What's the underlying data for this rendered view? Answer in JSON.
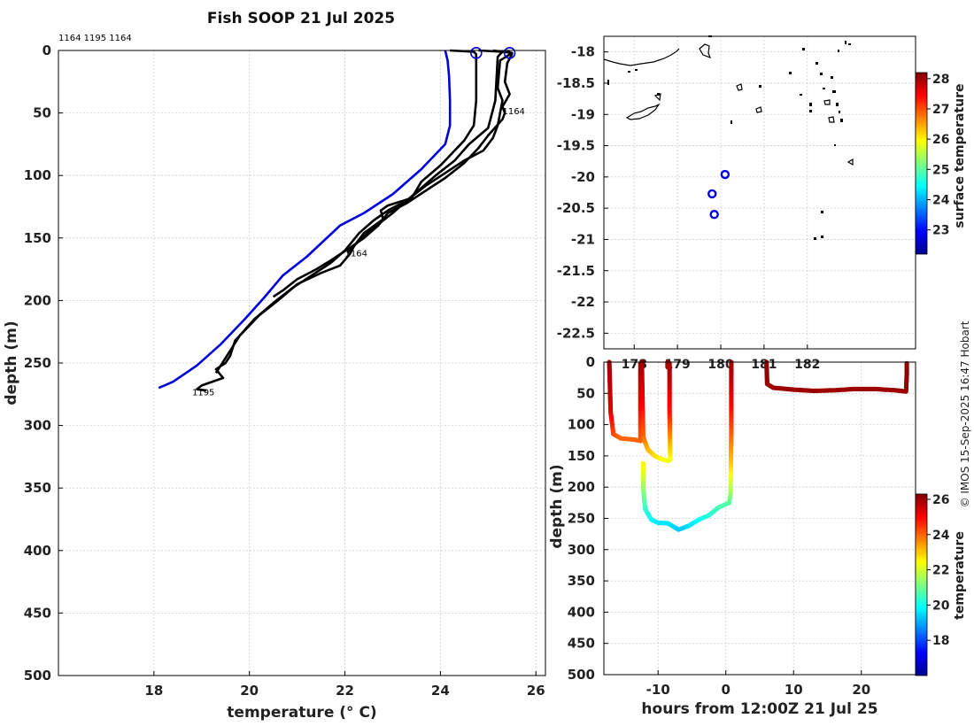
{
  "title": "Fish SOOP 21 Jul 2025",
  "header_ids": "1164 1195 1164",
  "credit": "© IMOS 15-Sep-2025 16:47 Hobart",
  "colors": {
    "blue_trace": "#0000dd",
    "black_trace": "#000000",
    "grid": "#cccccc"
  },
  "chart_data": [
    {
      "type": "line",
      "name": "temperature-depth-profiles",
      "xlabel": "temperature (° C)",
      "ylabel": "depth (m)",
      "xlim": [
        16,
        26.2
      ],
      "ylim": [
        500,
        0
      ],
      "xticks": [
        18,
        20,
        22,
        24,
        26
      ],
      "yticks": [
        0,
        50,
        100,
        150,
        200,
        250,
        300,
        350,
        400,
        450,
        500
      ],
      "annotations": [
        {
          "text": "1164",
          "x": 25.3,
          "y": 48
        },
        {
          "text": "1164",
          "x": 22.0,
          "y": 162
        },
        {
          "text": "1195",
          "x": 18.8,
          "y": 273
        }
      ],
      "series": [
        {
          "name": "blue-profile",
          "color": "#0000dd",
          "points": [
            [
              24.1,
              0
            ],
            [
              24.15,
              8
            ],
            [
              24.18,
              20
            ],
            [
              24.2,
              40
            ],
            [
              24.2,
              60
            ],
            [
              24.1,
              75
            ],
            [
              23.6,
              95
            ],
            [
              23.0,
              115
            ],
            [
              22.4,
              130
            ],
            [
              21.9,
              140
            ],
            [
              21.2,
              165
            ],
            [
              20.7,
              180
            ],
            [
              20.3,
              198
            ],
            [
              19.9,
              215
            ],
            [
              19.4,
              235
            ],
            [
              18.9,
              252
            ],
            [
              18.4,
              265
            ],
            [
              18.1,
              270
            ]
          ]
        },
        {
          "name": "profile-1195",
          "color": "#000000",
          "points": [
            [
              24.2,
              0
            ],
            [
              24.7,
              1
            ],
            [
              24.75,
              3
            ],
            [
              24.75,
              40
            ],
            [
              24.7,
              60
            ],
            [
              24.5,
              72
            ],
            [
              24.0,
              92
            ],
            [
              23.6,
              105
            ],
            [
              23.4,
              118
            ],
            [
              22.9,
              124
            ],
            [
              22.75,
              128
            ],
            [
              22.8,
              135
            ],
            [
              22.4,
              146
            ],
            [
              22.2,
              156
            ],
            [
              22.1,
              163
            ],
            [
              21.9,
              172
            ],
            [
              21.5,
              178
            ],
            [
              21.0,
              187
            ],
            [
              20.6,
              200
            ],
            [
              20.2,
              212
            ],
            [
              19.9,
              224
            ],
            [
              19.7,
              232
            ],
            [
              19.6,
              244
            ],
            [
              19.5,
              250
            ],
            [
              19.3,
              255
            ],
            [
              19.45,
              262
            ],
            [
              19.0,
              268
            ],
            [
              18.9,
              271
            ],
            [
              19.1,
              272
            ]
          ]
        },
        {
          "name": "profile-1164-a",
          "color": "#000000",
          "points": [
            [
              24.8,
              0
            ],
            [
              25.3,
              1
            ],
            [
              25.2,
              5
            ],
            [
              25.15,
              40
            ],
            [
              25.0,
              62
            ],
            [
              24.6,
              75
            ],
            [
              24.3,
              88
            ],
            [
              23.9,
              100
            ],
            [
              23.6,
              110
            ],
            [
              23.3,
              120
            ],
            [
              22.9,
              128
            ],
            [
              22.6,
              136
            ],
            [
              22.3,
              146
            ],
            [
              22.0,
              160
            ],
            [
              21.7,
              170
            ],
            [
              21.3,
              180
            ],
            [
              20.9,
              190
            ],
            [
              20.5,
              202
            ],
            [
              20.1,
              215
            ],
            [
              19.8,
              228
            ],
            [
              19.6,
              240
            ],
            [
              19.4,
              252
            ],
            [
              19.3,
              258
            ]
          ]
        },
        {
          "name": "profile-1164-b",
          "color": "#000000",
          "points": [
            [
              25.4,
              0
            ],
            [
              25.5,
              3
            ],
            [
              25.4,
              10
            ],
            [
              25.35,
              25
            ],
            [
              25.45,
              35
            ],
            [
              25.3,
              45
            ],
            [
              25.35,
              50
            ],
            [
              25.3,
              55
            ],
            [
              25.0,
              68
            ],
            [
              24.8,
              78
            ],
            [
              24.5,
              90
            ],
            [
              24.1,
              102
            ],
            [
              23.7,
              112
            ],
            [
              23.3,
              122
            ],
            [
              22.9,
              130
            ],
            [
              22.7,
              140
            ],
            [
              22.4,
              150
            ],
            [
              22.1,
              158
            ],
            [
              21.7,
              168
            ],
            [
              21.4,
              175
            ],
            [
              21.0,
              183
            ],
            [
              20.7,
              192
            ],
            [
              20.5,
              197
            ]
          ]
        },
        {
          "name": "profile-1164-c",
          "color": "#000000",
          "points": [
            [
              25.1,
              0
            ],
            [
              25.5,
              2
            ],
            [
              25.25,
              8
            ],
            [
              25.2,
              30
            ],
            [
              25.3,
              40
            ],
            [
              25.2,
              60
            ],
            [
              25.1,
              70
            ],
            [
              24.9,
              80
            ],
            [
              24.5,
              88
            ],
            [
              24.1,
              98
            ],
            [
              23.7,
              108
            ],
            [
              23.3,
              120
            ],
            [
              23.0,
              130
            ],
            [
              22.6,
              142
            ],
            [
              22.3,
              152
            ],
            [
              22.05,
              162
            ]
          ]
        }
      ],
      "start_markers": [
        [
          24.75,
          2
        ],
        [
          25.45,
          2
        ]
      ]
    },
    {
      "type": "scatter",
      "name": "location-map",
      "xlim": [
        177.3,
        184.5
      ],
      "ylim": [
        -22.75,
        -17.75
      ],
      "yticks": [
        -18,
        -18.5,
        -19,
        -19.5,
        -20,
        -20.5,
        -21,
        -21.5,
        -22,
        -22.5
      ],
      "xticks": [
        178,
        179,
        180,
        181,
        182
      ],
      "xtick_labels": [
        "178",
        "179",
        "180",
        "181",
        "182"
      ],
      "points": [
        [
          179.8,
          -20.27
        ],
        [
          179.85,
          -20.6
        ],
        [
          180.1,
          -19.96
        ]
      ],
      "colorbar": {
        "label": "surface temperature",
        "ticks": [
          23,
          24,
          25,
          26,
          27,
          28
        ],
        "range": [
          22.2,
          28.2
        ]
      }
    },
    {
      "type": "scatter",
      "name": "depth-time-section",
      "xlabel": "hours from 12:00Z 21 Jul 25",
      "ylabel": "depth (m)",
      "xlim": [
        -18,
        28
      ],
      "ylim": [
        500,
        0
      ],
      "xticks": [
        -10,
        0,
        10,
        20
      ],
      "yticks": [
        0,
        50,
        100,
        150,
        200,
        250,
        300,
        350,
        400,
        450,
        500
      ],
      "colorbar": {
        "label": "temperature",
        "ticks": [
          18,
          20,
          22,
          24,
          26
        ],
        "range": [
          16,
          26.3
        ]
      },
      "segments": [
        {
          "points": [
            [
              -17.2,
              0,
              26
            ],
            [
              -17.1,
              40,
              25.7
            ],
            [
              -17.0,
              80,
              25.3
            ],
            [
              -16.6,
              115,
              24.3
            ],
            [
              -15.5,
              122,
              24.0
            ],
            [
              -13.5,
              124,
              24.0
            ],
            [
              -12.6,
              126,
              24.0
            ]
          ]
        },
        {
          "points": [
            [
              -12.6,
              126,
              24.0
            ],
            [
              -12.6,
              60,
              25.2
            ],
            [
              -12.6,
              0,
              26.0
            ]
          ]
        },
        {
          "points": [
            [
              -12.4,
              0,
              26
            ],
            [
              -12.3,
              60,
              25.2
            ],
            [
              -12.2,
              120,
              24.0
            ],
            [
              -11.5,
              140,
              23.2
            ],
            [
              -10.5,
              150,
              22.8
            ],
            [
              -9.5,
              155,
              22.5
            ],
            [
              -8.5,
              158,
              22.3
            ],
            [
              -8.2,
              156,
              22.3
            ]
          ]
        },
        {
          "points": [
            [
              -8.2,
              156,
              22.3
            ],
            [
              -8.3,
              80,
              24.8
            ],
            [
              -8.3,
              0,
              26.0
            ]
          ]
        },
        {
          "points": [
            [
              -8.6,
              0,
              26
            ],
            [
              -8.6,
              10,
              25.9
            ]
          ]
        },
        {
          "points": [
            [
              0.8,
              0,
              26
            ],
            [
              0.8,
              60,
              25.2
            ],
            [
              0.8,
              120,
              24.0
            ],
            [
              0.75,
              170,
              22.8
            ],
            [
              0.7,
              210,
              21.5
            ],
            [
              0.5,
              225,
              20.8
            ],
            [
              -1.0,
              232,
              20.6
            ],
            [
              -2.5,
              245,
              20.3
            ],
            [
              -4.0,
              252,
              20.0
            ],
            [
              -5.5,
              262,
              19.6
            ],
            [
              -7.0,
              268,
              19.3
            ],
            [
              -8.5,
              258,
              19.6
            ],
            [
              -10.0,
              257,
              19.6
            ],
            [
              -11.0,
              252,
              19.8
            ],
            [
              -11.9,
              235,
              20.3
            ],
            [
              -12.2,
              200,
              21.4
            ],
            [
              -12.2,
              160,
              22.6
            ]
          ]
        },
        {
          "points": [
            [
              6.0,
              0,
              26.1
            ],
            [
              6.1,
              35,
              26.1
            ],
            [
              7.0,
              41,
              26.0
            ],
            [
              10,
              44,
              26.0
            ],
            [
              13,
              46,
              26.0
            ],
            [
              16,
              45,
              26.0
            ],
            [
              19,
              43,
              26.0
            ],
            [
              22,
              43,
              26.0
            ],
            [
              25,
              45,
              26.0
            ],
            [
              26.6,
              47,
              26.0
            ],
            [
              26.7,
              20,
              26.1
            ],
            [
              26.7,
              0,
              26.1
            ]
          ]
        }
      ]
    }
  ]
}
